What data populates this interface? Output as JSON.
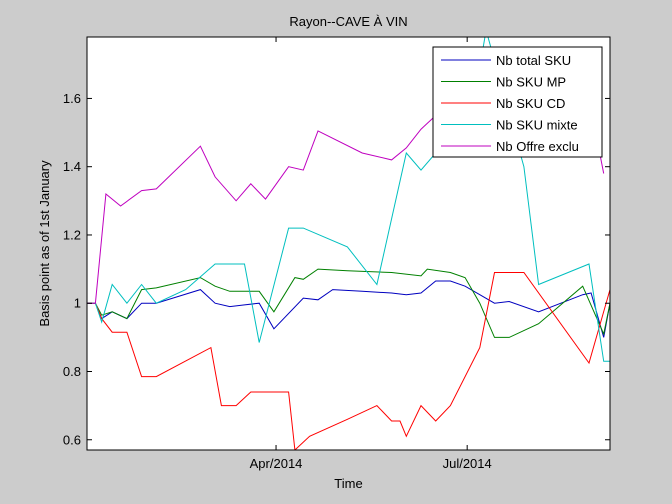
{
  "chart_data": {
    "type": "line",
    "title": "Rayon--CAVE À VIN",
    "xlabel": "Time",
    "ylabel": "Basis point as of 1st January",
    "x_range": [
      "2014-01-01",
      "2014-09-07"
    ],
    "ylim": [
      0.57,
      1.78
    ],
    "grid": false,
    "legend_position": "top-right",
    "x_ticks": [
      {
        "date": "2014-04-01",
        "label": "Apr/2014"
      },
      {
        "date": "2014-07-01",
        "label": "Jul/2014"
      }
    ],
    "y_ticks": [
      {
        "value": 0.6,
        "label": "0.6"
      },
      {
        "value": 0.8,
        "label": "0.8"
      },
      {
        "value": 1.0,
        "label": "1"
      },
      {
        "value": 1.2,
        "label": "1.2"
      },
      {
        "value": 1.4,
        "label": "1.4"
      },
      {
        "value": 1.6,
        "label": "1.6"
      }
    ],
    "series": [
      {
        "name": "Nb total SKU",
        "color": "#0000bf",
        "points": [
          [
            "2014-01-01",
            1.0
          ],
          [
            "2014-01-05",
            1.0
          ],
          [
            "2014-01-08",
            0.955
          ],
          [
            "2014-01-13",
            0.975
          ],
          [
            "2014-01-20",
            0.955
          ],
          [
            "2014-01-27",
            1.0
          ],
          [
            "2014-02-03",
            1.0
          ],
          [
            "2014-02-24",
            1.04
          ],
          [
            "2014-03-03",
            1.0
          ],
          [
            "2014-03-10",
            0.99
          ],
          [
            "2014-03-17",
            0.995
          ],
          [
            "2014-03-24",
            1.0
          ],
          [
            "2014-03-31",
            0.925
          ],
          [
            "2014-04-14",
            1.015
          ],
          [
            "2014-04-21",
            1.01
          ],
          [
            "2014-04-28",
            1.04
          ],
          [
            "2014-05-12",
            1.035
          ],
          [
            "2014-05-26",
            1.03
          ],
          [
            "2014-06-02",
            1.025
          ],
          [
            "2014-06-09",
            1.03
          ],
          [
            "2014-06-16",
            1.065
          ],
          [
            "2014-06-23",
            1.065
          ],
          [
            "2014-06-30",
            1.05
          ],
          [
            "2014-07-07",
            1.025
          ],
          [
            "2014-07-14",
            1.0
          ],
          [
            "2014-07-21",
            1.005
          ],
          [
            "2014-08-04",
            0.975
          ],
          [
            "2014-08-25",
            1.025
          ],
          [
            "2014-08-29",
            1.03
          ],
          [
            "2014-09-04",
            0.9
          ],
          [
            "2014-09-07",
            1.0
          ]
        ]
      },
      {
        "name": "Nb SKU MP",
        "color": "#008000",
        "points": [
          [
            "2014-01-01",
            1.0
          ],
          [
            "2014-01-05",
            1.0
          ],
          [
            "2014-01-08",
            0.965
          ],
          [
            "2014-01-13",
            0.975
          ],
          [
            "2014-01-20",
            0.955
          ],
          [
            "2014-01-27",
            1.04
          ],
          [
            "2014-02-03",
            1.045
          ],
          [
            "2014-02-24",
            1.075
          ],
          [
            "2014-03-03",
            1.05
          ],
          [
            "2014-03-10",
            1.035
          ],
          [
            "2014-03-24",
            1.035
          ],
          [
            "2014-03-31",
            0.975
          ],
          [
            "2014-04-10",
            1.075
          ],
          [
            "2014-04-14",
            1.07
          ],
          [
            "2014-04-21",
            1.1
          ],
          [
            "2014-05-05",
            1.095
          ],
          [
            "2014-05-26",
            1.09
          ],
          [
            "2014-06-09",
            1.08
          ],
          [
            "2014-06-12",
            1.1
          ],
          [
            "2014-06-23",
            1.09
          ],
          [
            "2014-06-30",
            1.075
          ],
          [
            "2014-07-07",
            1.0
          ],
          [
            "2014-07-14",
            0.9
          ],
          [
            "2014-07-21",
            0.9
          ],
          [
            "2014-08-04",
            0.94
          ],
          [
            "2014-08-25",
            1.05
          ],
          [
            "2014-09-04",
            0.91
          ],
          [
            "2014-09-07",
            1.0
          ]
        ]
      },
      {
        "name": "Nb SKU CD",
        "color": "#ff0000",
        "points": [
          [
            "2014-01-01",
            1.0
          ],
          [
            "2014-01-05",
            1.0
          ],
          [
            "2014-01-08",
            0.955
          ],
          [
            "2014-01-13",
            0.915
          ],
          [
            "2014-01-20",
            0.915
          ],
          [
            "2014-01-27",
            0.785
          ],
          [
            "2014-02-03",
            0.785
          ],
          [
            "2014-03-01",
            0.87
          ],
          [
            "2014-03-06",
            0.7
          ],
          [
            "2014-03-13",
            0.7
          ],
          [
            "2014-03-20",
            0.74
          ],
          [
            "2014-04-07",
            0.74
          ],
          [
            "2014-04-10",
            0.57
          ],
          [
            "2014-04-17",
            0.61
          ],
          [
            "2014-05-05",
            0.66
          ],
          [
            "2014-05-19",
            0.7
          ],
          [
            "2014-05-26",
            0.655
          ],
          [
            "2014-05-30",
            0.655
          ],
          [
            "2014-06-02",
            0.61
          ],
          [
            "2014-06-09",
            0.7
          ],
          [
            "2014-06-16",
            0.655
          ],
          [
            "2014-06-23",
            0.7
          ],
          [
            "2014-07-07",
            0.87
          ],
          [
            "2014-07-14",
            1.09
          ],
          [
            "2014-07-28",
            1.09
          ],
          [
            "2014-08-28",
            0.825
          ],
          [
            "2014-09-07",
            1.04
          ]
        ]
      },
      {
        "name": "Nb SKU mixte",
        "color": "#00bfbf",
        "points": [
          [
            "2014-01-01",
            1.0
          ],
          [
            "2014-01-05",
            1.0
          ],
          [
            "2014-01-08",
            0.945
          ],
          [
            "2014-01-13",
            1.055
          ],
          [
            "2014-01-20",
            1.0
          ],
          [
            "2014-01-27",
            1.055
          ],
          [
            "2014-02-03",
            1.0
          ],
          [
            "2014-02-17",
            1.04
          ],
          [
            "2014-03-03",
            1.115
          ],
          [
            "2014-03-17",
            1.115
          ],
          [
            "2014-03-24",
            0.885
          ],
          [
            "2014-04-07",
            1.22
          ],
          [
            "2014-04-14",
            1.22
          ],
          [
            "2014-05-05",
            1.165
          ],
          [
            "2014-05-19",
            1.055
          ],
          [
            "2014-06-02",
            1.44
          ],
          [
            "2014-06-09",
            1.39
          ],
          [
            "2014-06-16",
            1.44
          ],
          [
            "2014-06-30",
            1.44
          ],
          [
            "2014-07-10",
            1.8
          ],
          [
            "2014-07-28",
            1.4
          ],
          [
            "2014-08-04",
            1.055
          ],
          [
            "2014-08-28",
            1.115
          ],
          [
            "2014-09-04",
            0.83
          ],
          [
            "2014-09-07",
            0.83
          ]
        ]
      },
      {
        "name": "Nb Offre exclu",
        "color": "#bf00bf",
        "points": [
          [
            "2014-01-01",
            1.0
          ],
          [
            "2014-01-05",
            1.0
          ],
          [
            "2014-01-10",
            1.32
          ],
          [
            "2014-01-17",
            1.285
          ],
          [
            "2014-01-27",
            1.33
          ],
          [
            "2014-02-03",
            1.335
          ],
          [
            "2014-02-24",
            1.46
          ],
          [
            "2014-03-03",
            1.37
          ],
          [
            "2014-03-13",
            1.3
          ],
          [
            "2014-03-20",
            1.35
          ],
          [
            "2014-03-27",
            1.305
          ],
          [
            "2014-04-07",
            1.4
          ],
          [
            "2014-04-14",
            1.39
          ],
          [
            "2014-04-21",
            1.505
          ],
          [
            "2014-05-12",
            1.44
          ],
          [
            "2014-05-26",
            1.42
          ],
          [
            "2014-06-02",
            1.455
          ],
          [
            "2014-06-09",
            1.51
          ],
          [
            "2014-06-16",
            1.55
          ],
          [
            "2014-06-30",
            1.66
          ],
          [
            "2014-07-07",
            1.66
          ],
          [
            "2014-07-28",
            1.44
          ],
          [
            "2014-08-04",
            1.47
          ],
          [
            "2014-08-28",
            1.6
          ],
          [
            "2014-09-04",
            1.38
          ]
        ]
      }
    ]
  }
}
